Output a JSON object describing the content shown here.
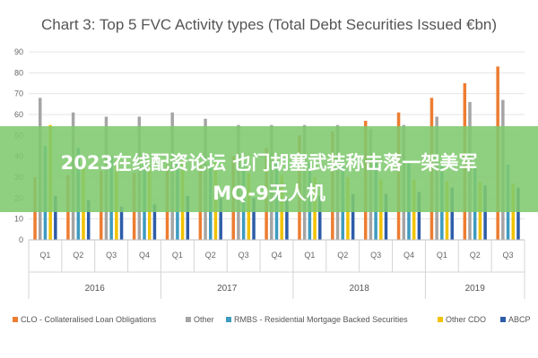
{
  "chart_data": {
    "type": "bar",
    "title": "Chart 3: Top 5 FVC Activity types (Total Debt Securities Issued €bn)",
    "xlabel": "",
    "ylabel": "",
    "ylim": [
      0,
      90
    ],
    "yticks": [
      "0",
      "10",
      "20",
      "30",
      "40",
      "50",
      "60",
      "70",
      "80",
      "90"
    ],
    "grid": true,
    "legend_position": "bottom",
    "categories": [
      "Q1",
      "Q2",
      "Q3",
      "Q4",
      "Q1",
      "Q2",
      "Q3",
      "Q4",
      "Q1",
      "Q2",
      "Q3",
      "Q4",
      "Q1",
      "Q2",
      "Q3"
    ],
    "years": [
      {
        "label": "2016",
        "quarters": 4
      },
      {
        "label": "2017",
        "quarters": 4
      },
      {
        "label": "2018",
        "quarters": 4
      },
      {
        "label": "2019",
        "quarters": 3
      }
    ],
    "series": [
      {
        "name": "CLO - Collateralised Loan Obligations",
        "color": "#ED7D31",
        "values": [
          30,
          31,
          33,
          32,
          36,
          37,
          40,
          44,
          50,
          52,
          57,
          61,
          68,
          75,
          83
        ]
      },
      {
        "name": "Other",
        "color": "#A5A5A5",
        "values": [
          68,
          61,
          59,
          59,
          61,
          58,
          55,
          55,
          55,
          55,
          53,
          55,
          59,
          66,
          67
        ]
      },
      {
        "name": "RMBS - Residential Mortgage Backed Securities",
        "color": "#3E9BC0",
        "values": [
          45,
          44,
          40,
          40,
          38,
          37,
          37,
          38,
          37,
          38,
          38,
          38,
          36,
          35,
          36
        ]
      },
      {
        "name": "Other CDO",
        "color": "#F2C200",
        "values": [
          55,
          40,
          38,
          35,
          38,
          37,
          32,
          31,
          30,
          30,
          29,
          29,
          28,
          28,
          27
        ]
      },
      {
        "name": "ABCP",
        "color": "#2E5DA8",
        "values": [
          21,
          19,
          16,
          17,
          21,
          20,
          20,
          20,
          21,
          22,
          22,
          23,
          25,
          26,
          25
        ]
      }
    ]
  },
  "overlay": {
    "line1": "2023在线配资论坛 也门胡塞武装称击落一架美军",
    "line2": "MQ-9无人机"
  }
}
